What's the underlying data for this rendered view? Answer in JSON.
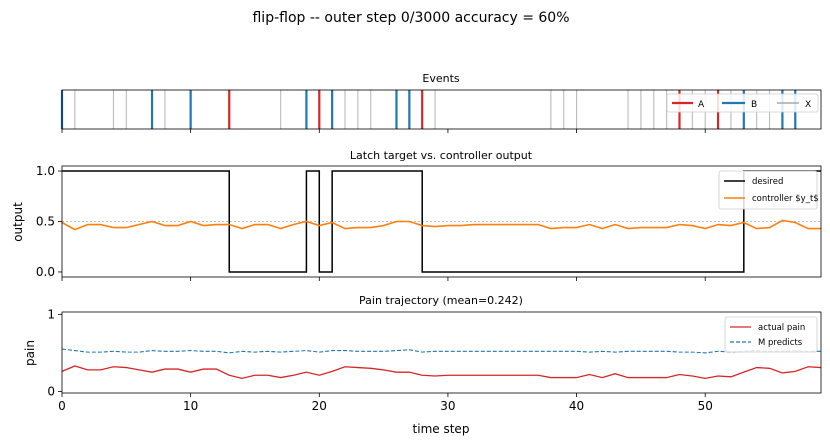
{
  "figure": {
    "suptitle": "flip-flop  --  outer step 0/3000   accuracy = 60%",
    "colors": {
      "A": "#d62728",
      "B": "#1f77b4",
      "X": "#bbbbbb",
      "desired": "#000000",
      "controller": "#ff7f0e",
      "pain": "#d62728",
      "predicts": "#1f77b4"
    }
  },
  "chart_data": [
    {
      "type": "event-raster",
      "title": "Events",
      "xlim": [
        0,
        59
      ],
      "legend": {
        "placement": "upper-right",
        "entries": [
          "A",
          "B",
          "X"
        ]
      },
      "events": {
        "A": [
          13,
          20,
          28,
          48,
          51
        ],
        "B": [
          0,
          7,
          10,
          19,
          21,
          26,
          27,
          53,
          56,
          57
        ],
        "X": [
          1,
          4,
          5,
          8,
          17,
          22,
          23,
          24,
          29,
          38,
          39,
          40,
          44,
          45,
          46,
          47,
          49,
          50,
          52,
          54,
          55
        ]
      }
    },
    {
      "type": "line",
      "title": "Latch target vs. controller output",
      "ylabel": "output",
      "xlim": [
        0,
        59
      ],
      "ylim": [
        -0.05,
        1.05
      ],
      "yticks": [
        "0.0",
        "0.5",
        "1.0"
      ],
      "reference_line": 0.5,
      "legend": {
        "placement": "upper-right"
      },
      "series": [
        {
          "name": "desired",
          "style": "step",
          "x": [
            0,
            13,
            13,
            19,
            19,
            20,
            20,
            21,
            21,
            28,
            28,
            53,
            53,
            59
          ],
          "y": [
            1,
            1,
            0,
            0,
            1,
            1,
            0,
            0,
            1,
            1,
            0,
            0,
            1,
            1
          ]
        },
        {
          "name": "controller $y_t$",
          "style": "line",
          "x": [
            0,
            1,
            2,
            3,
            4,
            5,
            6,
            7,
            8,
            9,
            10,
            11,
            12,
            13,
            14,
            15,
            16,
            17,
            18,
            19,
            20,
            21,
            22,
            23,
            24,
            25,
            26,
            27,
            28,
            29,
            30,
            31,
            32,
            33,
            34,
            35,
            36,
            37,
            38,
            39,
            40,
            41,
            42,
            43,
            44,
            45,
            46,
            47,
            48,
            49,
            50,
            51,
            52,
            53,
            54,
            55,
            56,
            57,
            58,
            59
          ],
          "y": [
            0.49,
            0.42,
            0.47,
            0.47,
            0.44,
            0.44,
            0.47,
            0.5,
            0.46,
            0.46,
            0.5,
            0.46,
            0.47,
            0.47,
            0.43,
            0.47,
            0.47,
            0.43,
            0.47,
            0.5,
            0.46,
            0.49,
            0.43,
            0.44,
            0.44,
            0.46,
            0.5,
            0.5,
            0.46,
            0.45,
            0.46,
            0.46,
            0.47,
            0.47,
            0.47,
            0.47,
            0.47,
            0.47,
            0.43,
            0.44,
            0.44,
            0.47,
            0.43,
            0.47,
            0.43,
            0.44,
            0.44,
            0.44,
            0.47,
            0.46,
            0.43,
            0.47,
            0.46,
            0.49,
            0.43,
            0.44,
            0.51,
            0.49,
            0.43,
            0.43
          ]
        }
      ]
    },
    {
      "type": "line",
      "title": "Pain trajectory  (mean=0.242)",
      "ylabel": "pain",
      "xlabel": "time step",
      "xlim": [
        0,
        59
      ],
      "ylim": [
        -0.02,
        1.03
      ],
      "xticks": [
        "0",
        "10",
        "20",
        "30",
        "40",
        "50"
      ],
      "yticks": [
        "0",
        "1"
      ],
      "legend": {
        "placement": "upper-right"
      },
      "series": [
        {
          "name": "actual pain",
          "style": "solid",
          "x": [
            0,
            1,
            2,
            3,
            4,
            5,
            6,
            7,
            8,
            9,
            10,
            11,
            12,
            13,
            14,
            15,
            16,
            17,
            18,
            19,
            20,
            21,
            22,
            23,
            24,
            25,
            26,
            27,
            28,
            29,
            30,
            31,
            32,
            33,
            34,
            35,
            36,
            37,
            38,
            39,
            40,
            41,
            42,
            43,
            44,
            45,
            46,
            47,
            48,
            49,
            50,
            51,
            52,
            53,
            54,
            55,
            56,
            57,
            58,
            59
          ],
          "y": [
            0.26,
            0.33,
            0.28,
            0.28,
            0.32,
            0.31,
            0.28,
            0.25,
            0.29,
            0.29,
            0.25,
            0.29,
            0.29,
            0.21,
            0.17,
            0.21,
            0.21,
            0.18,
            0.21,
            0.25,
            0.21,
            0.26,
            0.32,
            0.31,
            0.3,
            0.28,
            0.25,
            0.25,
            0.21,
            0.2,
            0.21,
            0.21,
            0.21,
            0.21,
            0.21,
            0.21,
            0.21,
            0.21,
            0.18,
            0.18,
            0.18,
            0.22,
            0.18,
            0.23,
            0.18,
            0.18,
            0.18,
            0.18,
            0.22,
            0.2,
            0.17,
            0.2,
            0.19,
            0.25,
            0.31,
            0.3,
            0.24,
            0.26,
            0.32,
            0.31
          ]
        },
        {
          "name": "M predicts",
          "style": "dashed",
          "x": [
            0,
            1,
            2,
            3,
            4,
            5,
            6,
            7,
            8,
            9,
            10,
            11,
            12,
            13,
            14,
            15,
            16,
            17,
            18,
            19,
            20,
            21,
            22,
            23,
            24,
            25,
            26,
            27,
            28,
            29,
            30,
            31,
            32,
            33,
            34,
            35,
            36,
            37,
            38,
            39,
            40,
            41,
            42,
            43,
            44,
            45,
            46,
            47,
            48,
            49,
            50,
            51,
            52,
            53,
            54,
            55,
            56,
            57,
            58,
            59
          ],
          "y": [
            0.55,
            0.53,
            0.51,
            0.51,
            0.52,
            0.51,
            0.51,
            0.53,
            0.52,
            0.52,
            0.53,
            0.52,
            0.52,
            0.5,
            0.52,
            0.51,
            0.52,
            0.51,
            0.52,
            0.53,
            0.51,
            0.53,
            0.53,
            0.52,
            0.52,
            0.52,
            0.53,
            0.54,
            0.51,
            0.52,
            0.52,
            0.52,
            0.52,
            0.52,
            0.52,
            0.52,
            0.52,
            0.52,
            0.52,
            0.52,
            0.52,
            0.51,
            0.52,
            0.51,
            0.52,
            0.52,
            0.52,
            0.52,
            0.51,
            0.51,
            0.5,
            0.52,
            0.51,
            0.52,
            0.53,
            0.52,
            0.52,
            0.53,
            0.52,
            0.52
          ]
        }
      ]
    }
  ]
}
